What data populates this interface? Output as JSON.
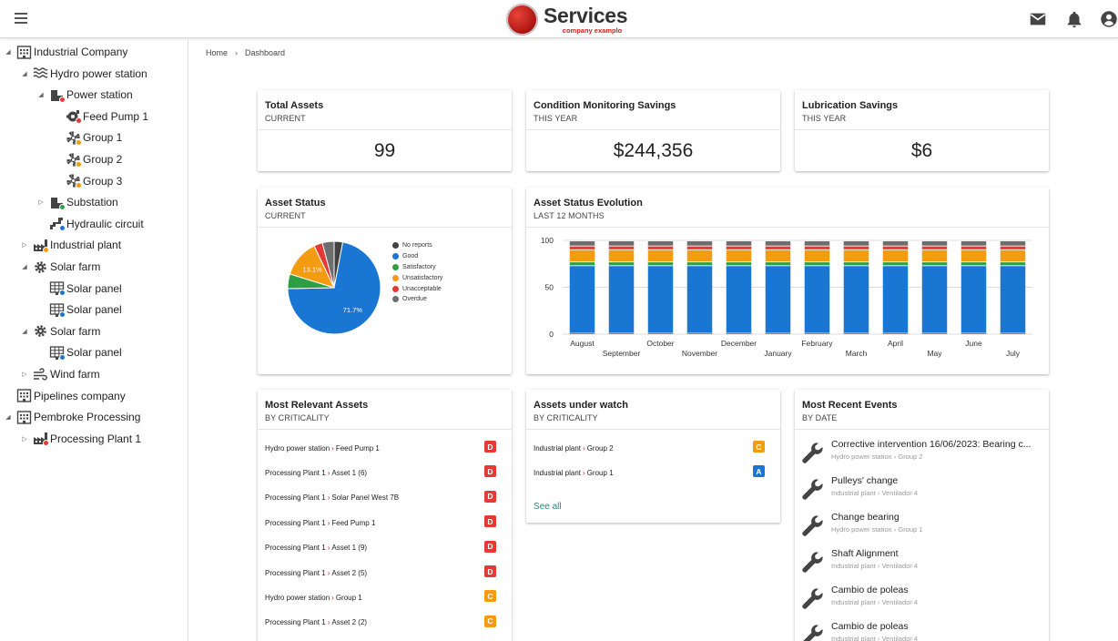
{
  "header": {
    "logo_title": "Services",
    "logo_subtitle": "company examplo"
  },
  "colors": {
    "brand_red": "#d0201a",
    "good": "#1976d2",
    "satisfactory": "#2e9e44",
    "unsatisfactory": "#f39c12",
    "unacceptable": "#e53935",
    "overdue": "#6e6e6e",
    "no_reports": "#424242",
    "link": "#1d8e7e"
  },
  "tree": [
    {
      "label": "Industrial Company",
      "depth": 0,
      "toggle": "open",
      "icon": "building-icon"
    },
    {
      "label": "Hydro power station",
      "depth": 1,
      "toggle": "open",
      "icon": "water-waves-icon"
    },
    {
      "label": "Power station",
      "depth": 2,
      "toggle": "open",
      "icon": "power-station-icon",
      "status": "#e53935"
    },
    {
      "label": "Feed Pump 1",
      "depth": 3,
      "toggle": "none",
      "icon": "pump-icon",
      "status": "#e53935"
    },
    {
      "label": "Group 1",
      "depth": 3,
      "toggle": "none",
      "icon": "fan-icon",
      "status": "#f39c12"
    },
    {
      "label": "Group 2",
      "depth": 3,
      "toggle": "none",
      "icon": "fan-icon",
      "status": "#f39c12"
    },
    {
      "label": "Group 3",
      "depth": 3,
      "toggle": "none",
      "icon": "fan-icon",
      "status": "#f39c12"
    },
    {
      "label": "Substation",
      "depth": 2,
      "toggle": "closed",
      "icon": "substation-icon",
      "status": "#2e9e44"
    },
    {
      "label": "Hydraulic circuit",
      "depth": 2,
      "toggle": "none",
      "icon": "hydraulic-icon",
      "status": "#1976d2"
    },
    {
      "label": "Industrial plant",
      "depth": 1,
      "toggle": "closed",
      "icon": "factory-icon",
      "status": "#f39c12"
    },
    {
      "label": "Solar farm",
      "depth": 1,
      "toggle": "open",
      "icon": "gear-sun-icon"
    },
    {
      "label": "Solar panel",
      "depth": 2,
      "toggle": "none",
      "icon": "solar-panel-icon",
      "status": "#1976d2"
    },
    {
      "label": "Solar panel",
      "depth": 2,
      "toggle": "none",
      "icon": "solar-panel-icon",
      "status": "#1976d2"
    },
    {
      "label": "Solar farm",
      "depth": 1,
      "toggle": "open",
      "icon": "gear-sun-icon"
    },
    {
      "label": "Solar panel",
      "depth": 2,
      "toggle": "none",
      "icon": "solar-panel-icon",
      "status": "#1976d2"
    },
    {
      "label": "Wind farm",
      "depth": 1,
      "toggle": "closed",
      "icon": "wind-icon"
    },
    {
      "label": "Pipelines company",
      "depth": 0,
      "toggle": "none",
      "icon": "building-icon"
    },
    {
      "label": "Pembroke Processing",
      "depth": 0,
      "toggle": "open",
      "icon": "building-icon"
    },
    {
      "label": "Processing Plant 1",
      "depth": 1,
      "toggle": "closed",
      "icon": "factory-icon",
      "status": "#e53935"
    }
  ],
  "breadcrumb": {
    "home": "Home",
    "separator": "›",
    "current": "Dashboard"
  },
  "kpis": {
    "total_assets": {
      "title": "Total Assets",
      "sub": "CURRENT",
      "value": "99"
    },
    "cm_savings": {
      "title": "Condition Monitoring Savings",
      "sub": "THIS YEAR",
      "value": "$244,356"
    },
    "lub_savings": {
      "title": "Lubrication Savings",
      "sub": "THIS YEAR",
      "value": "$6"
    }
  },
  "asset_status": {
    "title": "Asset Status",
    "sub": "CURRENT",
    "chart_data": {
      "type": "pie",
      "labels": [
        "No reports",
        "Good",
        "Satisfactory",
        "Unsatisfactory",
        "Unacceptable",
        "Overdue"
      ],
      "values": [
        3.0,
        71.7,
        5.1,
        13.1,
        3.0,
        4.1
      ],
      "colors": [
        "#424242",
        "#1976d2",
        "#2e9e44",
        "#f39c12",
        "#e53935",
        "#6e6e6e"
      ],
      "data_labels": {
        "Good": "71.7%",
        "Unsatisfactory": "13.1%"
      },
      "legend": "right"
    }
  },
  "evolution": {
    "title": "Asset Status Evolution",
    "sub": "LAST 12 MONTHS",
    "chart_data": {
      "type": "bar",
      "stacked": true,
      "categories": [
        "August",
        "September",
        "October",
        "November",
        "December",
        "January",
        "February",
        "March",
        "April",
        "May",
        "June",
        "July"
      ],
      "ylim": [
        0,
        100
      ],
      "yticks": [
        "0",
        "50",
        "100"
      ],
      "series": [
        {
          "color": "#424242",
          "values": [
            1,
            1,
            1,
            1,
            1,
            1,
            1,
            1,
            1,
            1,
            1,
            1
          ]
        },
        {
          "color": "#1976d2",
          "values": [
            72,
            72,
            72,
            72,
            72,
            72,
            72,
            72,
            72,
            72,
            72,
            72
          ]
        },
        {
          "color": "#2e9e44",
          "values": [
            4,
            4,
            4,
            4,
            4,
            4,
            4,
            4,
            4,
            4,
            4,
            4
          ]
        },
        {
          "color": "#f39c12",
          "values": [
            13,
            13,
            13,
            13,
            13,
            13,
            13,
            13,
            13,
            13,
            13,
            13
          ]
        },
        {
          "color": "#e53935",
          "values": [
            4,
            4,
            4,
            4,
            4,
            4,
            4,
            4,
            4,
            4,
            4,
            4
          ]
        },
        {
          "color": "#6e6e6e",
          "values": [
            5,
            5,
            5,
            5,
            5,
            5,
            5,
            5,
            5,
            5,
            5,
            5
          ]
        }
      ],
      "grid": true
    }
  },
  "relevant": {
    "title": "Most Relevant Assets",
    "sub": "BY CRITICALITY",
    "items": [
      {
        "parent": "Hydro power station",
        "asset": "Feed Pump 1",
        "crit": "D",
        "color": "#e53935"
      },
      {
        "parent": "Processing Plant 1",
        "asset": "Asset 1 (6)",
        "crit": "D",
        "color": "#e53935"
      },
      {
        "parent": "Processing Plant 1",
        "asset": "Solar Panel West 7B",
        "crit": "D",
        "color": "#e53935"
      },
      {
        "parent": "Processing Plant 1",
        "asset": "Feed Pump 1",
        "crit": "D",
        "color": "#e53935"
      },
      {
        "parent": "Processing Plant 1",
        "asset": "Asset 1 (9)",
        "crit": "D",
        "color": "#e53935"
      },
      {
        "parent": "Processing Plant 1",
        "asset": "Asset 2 (5)",
        "crit": "D",
        "color": "#e53935"
      },
      {
        "parent": "Hydro power station",
        "asset": "Group 1",
        "crit": "C",
        "color": "#f39c12"
      },
      {
        "parent": "Processing Plant 1",
        "asset": "Asset 2 (2)",
        "crit": "C",
        "color": "#f39c12"
      }
    ]
  },
  "watch": {
    "title": "Assets under watch",
    "sub": "BY CRITICALITY",
    "items": [
      {
        "parent": "Industrial plant",
        "asset": "Group 2",
        "crit": "C",
        "color": "#f39c12"
      },
      {
        "parent": "Industrial plant",
        "asset": "Group 1",
        "crit": "A",
        "color": "#1976d2"
      }
    ],
    "see_all": "See all"
  },
  "events": {
    "title": "Most Recent Events",
    "sub": "BY DATE",
    "items": [
      {
        "title": "Corrective intervention 16/06/2023: Bearing c...",
        "path": "Hydro power station › Group 2"
      },
      {
        "title": "Pulleys' change",
        "path": "Industrial plant › Ventilador 4"
      },
      {
        "title": "Change bearing",
        "path": "Hydro power station › Group 1"
      },
      {
        "title": "Shaft Alignment",
        "path": "Industrial plant › Ventilador 4"
      },
      {
        "title": "Cambio de poleas",
        "path": "Industrial plant › Ventilador 4"
      },
      {
        "title": "Cambio de poleas",
        "path": "Industrial plant › Ventilador 4"
      }
    ]
  }
}
